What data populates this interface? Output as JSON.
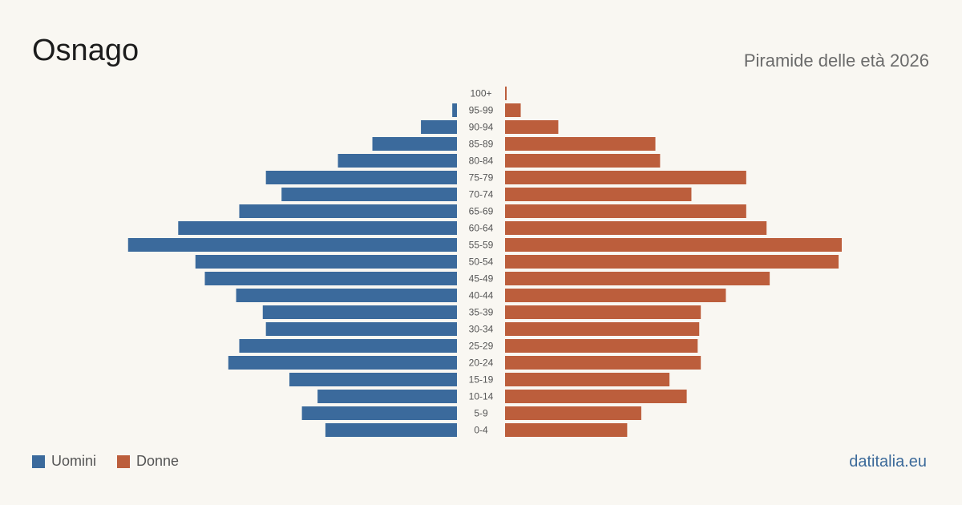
{
  "title": "Osnago",
  "subtitle": "Piramide delle età 2026",
  "source": "datitalia.eu",
  "colors": {
    "men": "#3b6a9c",
    "women": "#bc5e3c",
    "background": "#f9f7f2"
  },
  "legend": [
    {
      "label": "Uomini",
      "color": "#3b6a9c"
    },
    {
      "label": "Donne",
      "color": "#bc5e3c"
    }
  ],
  "chart_data": {
    "type": "bar",
    "orientation": "horizontal-pyramid",
    "categories": [
      "100+",
      "95-99",
      "90-94",
      "85-89",
      "80-84",
      "75-79",
      "70-74",
      "65-69",
      "60-64",
      "55-59",
      "50-54",
      "45-49",
      "40-44",
      "35-39",
      "30-34",
      "25-29",
      "20-24",
      "15-19",
      "10-14",
      "5-9",
      "0-4"
    ],
    "series": [
      {
        "name": "Uomini",
        "color": "#3b6a9c",
        "values": [
          0,
          3,
          23,
          54,
          76,
          122,
          112,
          139,
          178,
          210,
          167,
          161,
          141,
          124,
          122,
          139,
          146,
          107,
          89,
          99,
          84
        ]
      },
      {
        "name": "Donne",
        "color": "#bc5e3c",
        "values": [
          1,
          10,
          34,
          96,
          99,
          154,
          119,
          154,
          167,
          215,
          213,
          169,
          141,
          125,
          124,
          123,
          125,
          105,
          116,
          87,
          78
        ]
      }
    ],
    "max_value": 215,
    "gridlines": false,
    "legend_position": "bottom-left"
  }
}
